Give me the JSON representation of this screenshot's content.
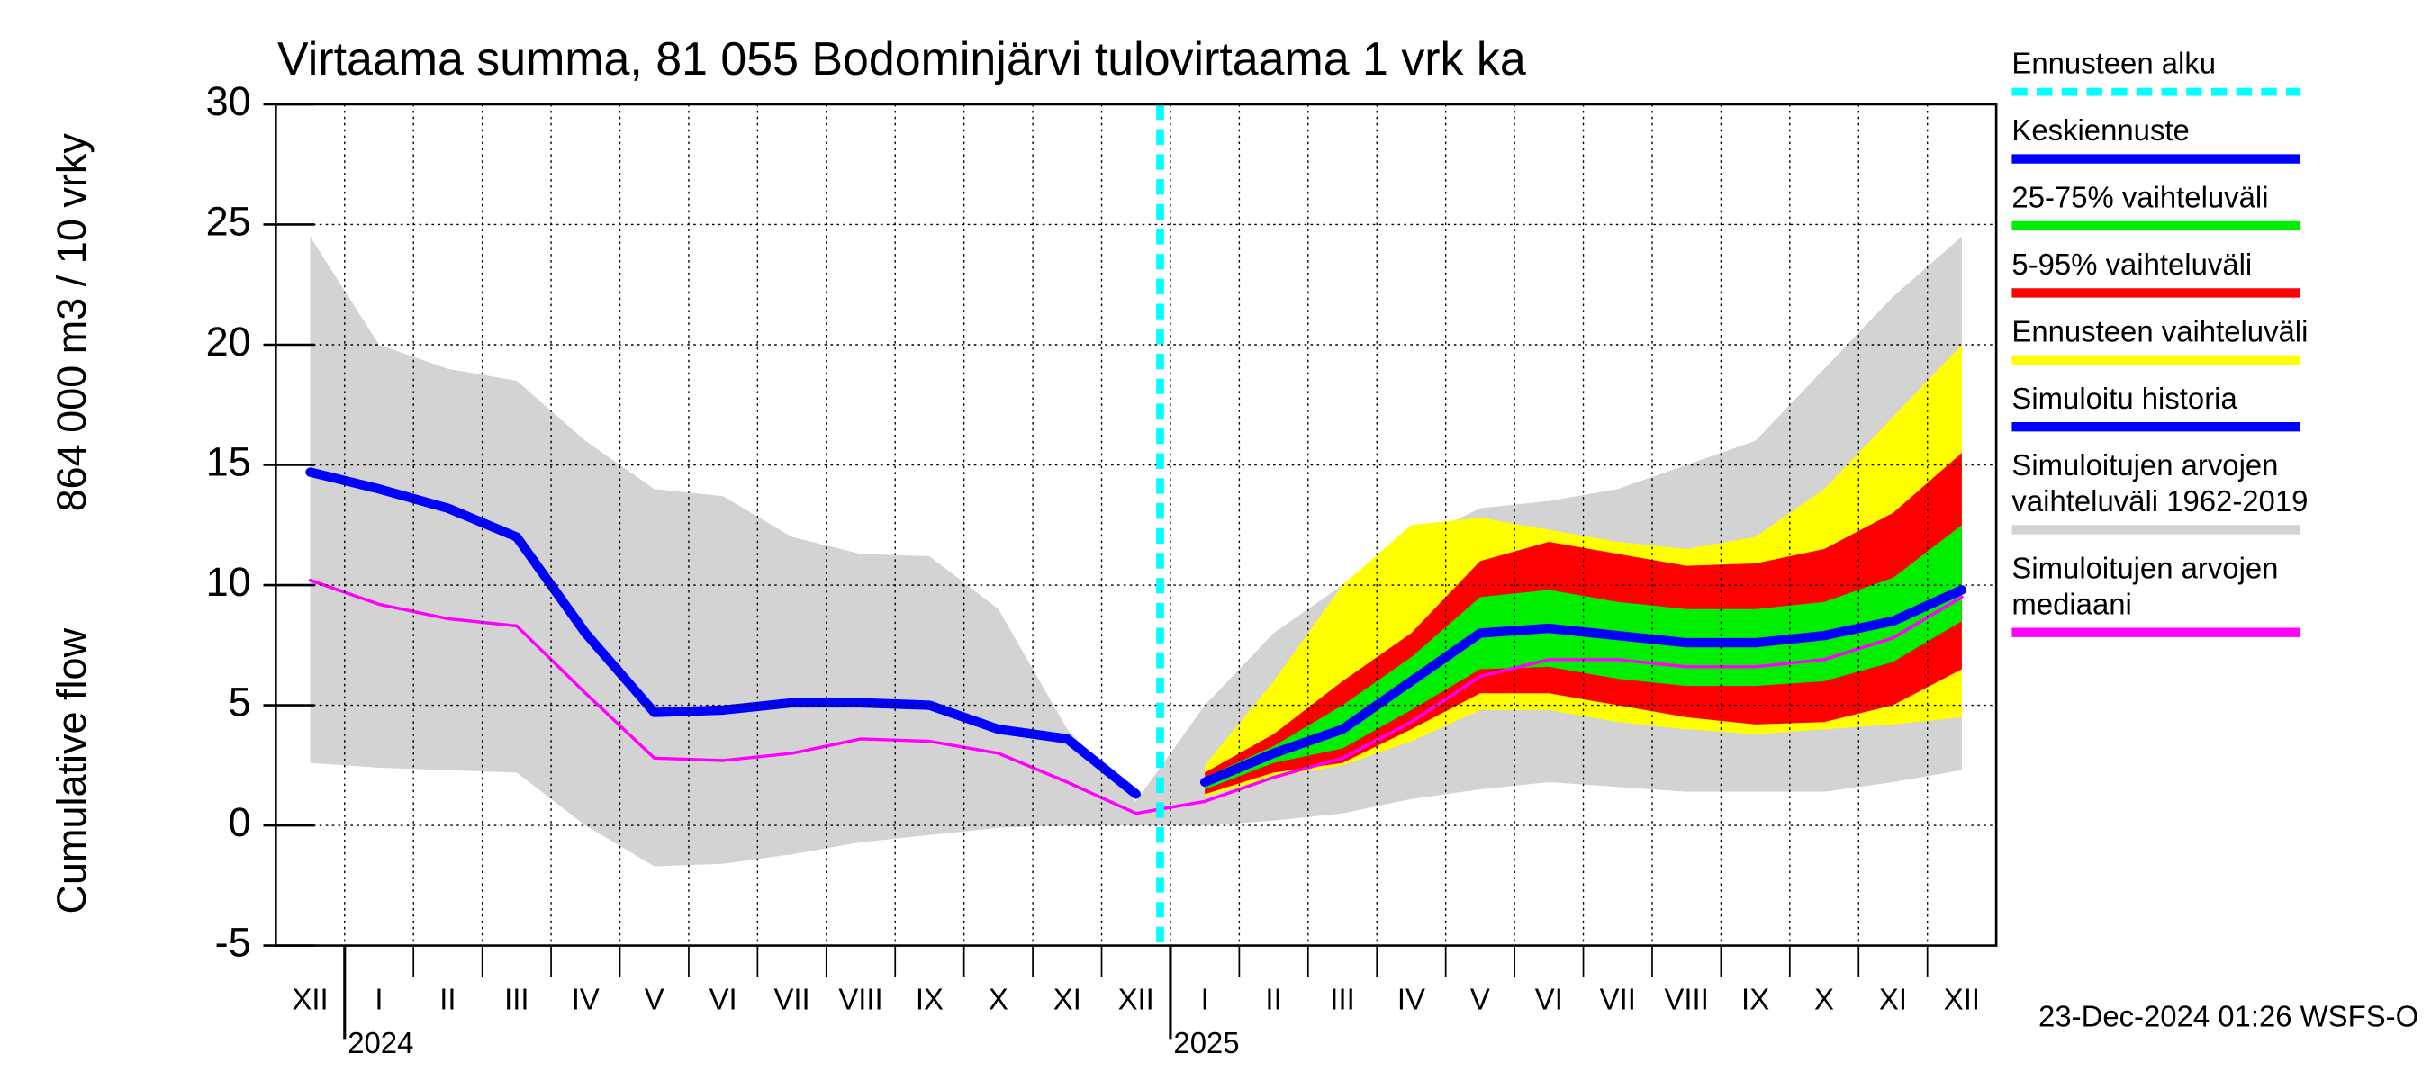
{
  "chart_data": {
    "type": "band-line",
    "title": "Virtaama summa, 81 055 Bodominjärvi tulovirtaama 1 vrk ka",
    "ylabel": [
      "Cumulative flow",
      "864 000 m3 / 10 vrky"
    ],
    "footer": "23-Dec-2024 01:26 WSFS-O",
    "categories": [
      "XII",
      "I",
      "II",
      "III",
      "IV",
      "V",
      "VI",
      "VII",
      "VIII",
      "IX",
      "X",
      "XI",
      "XII",
      "I",
      "II",
      "III",
      "IV",
      "V",
      "VI",
      "VII",
      "VIII",
      "IX",
      "X",
      "XI",
      "XII"
    ],
    "years": [
      "2024",
      "2025"
    ],
    "ylim": [
      -5,
      30
    ],
    "yticks": [
      -5,
      0,
      5,
      10,
      15,
      20,
      25,
      30
    ],
    "grid": true,
    "forecast_start": {
      "name": "Ennusteen alku",
      "color": "#00ffff",
      "position": 12.85
    },
    "series": [
      {
        "name": "Keskiennuste",
        "color": "#0000ff",
        "values": [
          null,
          null,
          null,
          null,
          null,
          null,
          null,
          null,
          null,
          null,
          null,
          null,
          null,
          1.8,
          3,
          4,
          6,
          8,
          8.2,
          7.9,
          7.6,
          7.6,
          7.9,
          8.5,
          9.8
        ]
      },
      {
        "name": "25-75% vaihteluväli",
        "color": "#00ee00",
        "upper": [
          null,
          null,
          null,
          null,
          null,
          null,
          null,
          null,
          null,
          null,
          null,
          null,
          null,
          2,
          3.3,
          5,
          7,
          9.5,
          9.8,
          9.3,
          9,
          9,
          9.3,
          10.3,
          12.5
        ],
        "lower": [
          null,
          null,
          null,
          null,
          null,
          null,
          null,
          null,
          null,
          null,
          null,
          null,
          null,
          1.5,
          2.6,
          3.2,
          4.8,
          6.5,
          6.6,
          6.1,
          5.8,
          5.8,
          6,
          6.8,
          8.5
        ]
      },
      {
        "name": "5-95% vaihteluväli",
        "color": "#ff0000",
        "upper": [
          null,
          null,
          null,
          null,
          null,
          null,
          null,
          null,
          null,
          null,
          null,
          null,
          null,
          2.2,
          3.8,
          6,
          8,
          11,
          11.8,
          11.3,
          10.8,
          10.9,
          11.5,
          13,
          15.5
        ],
        "lower": [
          null,
          null,
          null,
          null,
          null,
          null,
          null,
          null,
          null,
          null,
          null,
          null,
          null,
          1.3,
          2.2,
          2.6,
          4,
          5.5,
          5.5,
          5,
          4.5,
          4.2,
          4.3,
          5,
          6.5
        ]
      },
      {
        "name": "Ennusteen vaihteluväli",
        "color": "#ffff00",
        "upper": [
          null,
          null,
          null,
          null,
          null,
          null,
          null,
          null,
          null,
          null,
          null,
          null,
          null,
          2.5,
          6,
          10,
          12.5,
          12.8,
          12.3,
          11.8,
          11.5,
          12,
          14,
          17,
          20
        ],
        "lower": [
          null,
          null,
          null,
          null,
          null,
          null,
          null,
          null,
          null,
          null,
          null,
          null,
          null,
          1.2,
          2,
          2.5,
          3.5,
          4.8,
          4.8,
          4.3,
          4,
          3.8,
          4,
          4.2,
          4.5
        ]
      },
      {
        "name": "Simuloitu historia",
        "color": "#0000ff",
        "values": [
          14.7,
          14,
          13.2,
          12,
          8,
          4.7,
          4.8,
          5.1,
          5.1,
          5,
          4,
          3.6,
          1.3,
          null,
          null,
          null,
          null,
          null,
          null,
          null,
          null,
          null,
          null,
          null,
          null
        ]
      },
      {
        "name": "Simuloitujen arvojen vaihteluväli 1962-2019",
        "color": "#d3d3d3",
        "upper": [
          24.5,
          20,
          19,
          18.5,
          16,
          14,
          13.7,
          12,
          11.3,
          11.2,
          9,
          4,
          1,
          5,
          8,
          10,
          11.8,
          13.2,
          13.5,
          14,
          15,
          16,
          19,
          22,
          24.5
        ],
        "lower": [
          2.6,
          2.4,
          2.3,
          2.2,
          0,
          -1.7,
          -1.6,
          -1.2,
          -0.7,
          -0.4,
          -0.1,
          0,
          0,
          0,
          0.2,
          0.5,
          1.1,
          1.5,
          1.8,
          1.6,
          1.4,
          1.4,
          1.4,
          1.8,
          2.3
        ]
      },
      {
        "name": "Simuloitujen arvojen mediaani",
        "color": "#ff00ff",
        "values": [
          10.2,
          9.2,
          8.6,
          8.3,
          5.5,
          2.8,
          2.7,
          3,
          3.6,
          3.5,
          3,
          1.8,
          0.5,
          1,
          2,
          2.8,
          4.3,
          6.2,
          6.9,
          6.9,
          6.6,
          6.6,
          6.9,
          7.8,
          9.5
        ]
      }
    ]
  }
}
